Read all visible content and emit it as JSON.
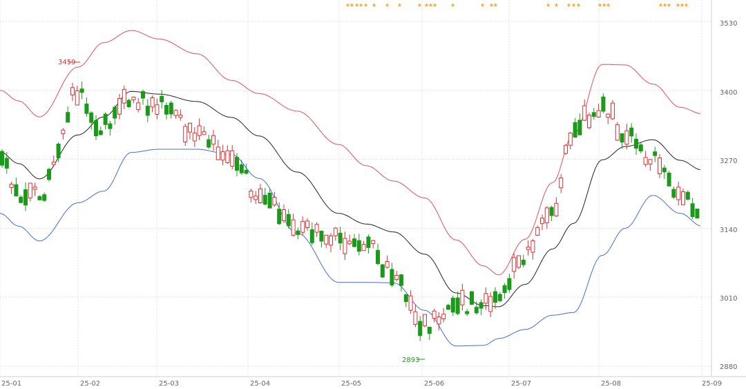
{
  "chart_data": {
    "type": "candlestick",
    "x_tick_labels": [
      "25-01",
      "25-02",
      "25-03",
      "25-04",
      "25-05",
      "25-06",
      "25-07",
      "25-08",
      "25-09"
    ],
    "y_tick_labels": [
      "3530",
      "3400",
      "3270",
      "3140",
      "3010",
      "2880"
    ],
    "y_ticks": [
      3530,
      3400,
      3270,
      3140,
      3010,
      2880
    ],
    "ylim": [
      2872,
      3560
    ],
    "grid": true,
    "annotations": {
      "high_label": "3459",
      "low_label": "2893"
    },
    "colors": {
      "up": "#e03030",
      "down": "#1a9a1a",
      "upper_band": "#e0505a",
      "middle_band": "#222222",
      "lower_band": "#3f6fd8",
      "grid": "#e2e2e2",
      "star": "#f5a623"
    },
    "stars_count": 30
  }
}
